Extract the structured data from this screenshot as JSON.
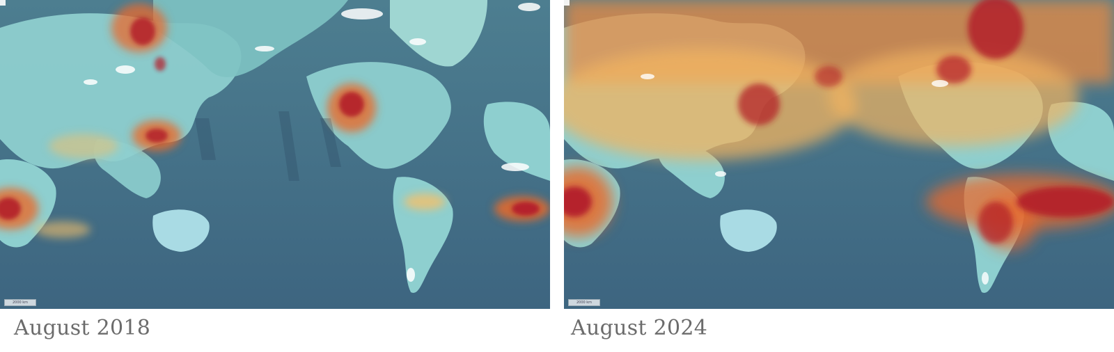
{
  "panels": [
    {
      "caption": "August 2018",
      "scale_label": "2000 km"
    },
    {
      "caption": "August 2024",
      "scale_label": "2000 km"
    }
  ],
  "colors": {
    "ocean": "#3f6a84",
    "land": "#8fcfcf",
    "ice": "#ffffff",
    "low_concentration": "#f4c06a",
    "mid_concentration": "#e86a2c",
    "high_concentration": "#b3202a"
  }
}
